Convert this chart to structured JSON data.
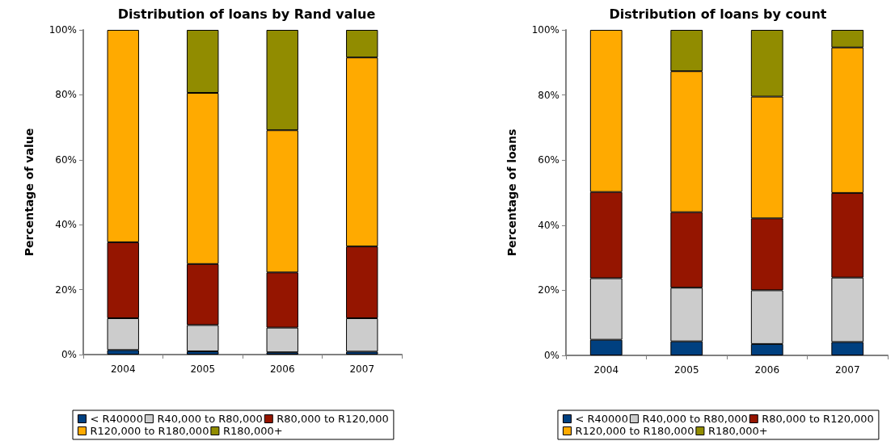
{
  "chart_data": [
    {
      "type": "bar",
      "title": "Distribution of loans by Rand value",
      "ylabel": "Percentage of value",
      "categories": [
        "2004",
        "2005",
        "2006",
        "2007"
      ],
      "stacked": true,
      "ylim": [
        0,
        100
      ],
      "yticks": [
        {
          "value": 0,
          "label": "0%"
        },
        {
          "value": 20,
          "label": "20%"
        },
        {
          "value": 40,
          "label": "40%"
        },
        {
          "value": 60,
          "label": "60%"
        },
        {
          "value": 80,
          "label": "80%"
        },
        {
          "value": 100,
          "label": "100%"
        }
      ],
      "grid": false,
      "legend": "bottom",
      "series": [
        {
          "name": "< R40000",
          "color": "#004080",
          "values": [
            1.4,
            1.0,
            0.7,
            0.9
          ]
        },
        {
          "name": "R40,000 to R80,000",
          "color": "#cccccc",
          "values": [
            9.8,
            8.1,
            7.6,
            10.3
          ]
        },
        {
          "name": "R80,000 to R120,000",
          "color": "#951500",
          "values": [
            23.4,
            18.8,
            17.0,
            22.1
          ]
        },
        {
          "name": "R120,000 to R180,000",
          "color": "#ffaa00",
          "values": [
            65.4,
            52.7,
            43.8,
            58.2
          ]
        },
        {
          "name": "R180,000+",
          "color": "#918c00",
          "values": [
            null,
            19.4,
            30.9,
            8.5
          ]
        }
      ]
    },
    {
      "type": "bar",
      "title": "Distribution of loans by count",
      "ylabel": "Percentage of loans",
      "categories": [
        "2004",
        "2005",
        "2006",
        "2007"
      ],
      "stacked": true,
      "ylim": [
        0,
        100
      ],
      "yticks": [
        {
          "value": 0,
          "label": "0%"
        },
        {
          "value": 20,
          "label": "20%"
        },
        {
          "value": 40,
          "label": "40%"
        },
        {
          "value": 60,
          "label": "60%"
        },
        {
          "value": 80,
          "label": "80%"
        },
        {
          "value": 100,
          "label": "100%"
        }
      ],
      "grid": false,
      "legend": "bottom",
      "series": [
        {
          "name": "< R40000",
          "color": "#004080",
          "values": [
            4.8,
            4.3,
            3.5,
            4.1
          ]
        },
        {
          "name": "R40,000 to R80,000",
          "color": "#cccccc",
          "values": [
            18.9,
            16.5,
            16.5,
            19.8
          ]
        },
        {
          "name": "R80,000 to R120,000",
          "color": "#951500",
          "values": [
            26.5,
            23.2,
            22.1,
            26.0
          ]
        },
        {
          "name": "R120,000 to R180,000",
          "color": "#ffaa00",
          "values": [
            49.8,
            43.3,
            37.4,
            44.7
          ]
        },
        {
          "name": "R180,000+",
          "color": "#918c00",
          "values": [
            null,
            12.7,
            20.5,
            5.4
          ]
        }
      ]
    }
  ]
}
